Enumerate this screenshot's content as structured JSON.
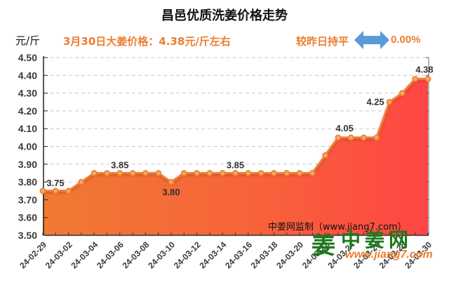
{
  "header": {
    "title": "昌邑优质洗姜价格走势",
    "unit": "元/斤",
    "headline": "3月30日大姜价格：4.38元/斤左右",
    "compare_label": "较昨日持平",
    "compare_icon": "double-arrow-left-right-icon",
    "change_pct": "0.00%"
  },
  "footer": {
    "source": "中姜网监制（www.jiang7.com）",
    "logo_text": "中姜网",
    "logo_glyph": "姜",
    "logo_url": "www.jiang7.com"
  },
  "colors": {
    "line": "#ed7d31",
    "fill_left": "#f07a32",
    "fill_right": "#ff4545",
    "accent_text": "#ed7d31",
    "arrow": "#5b9bd5",
    "logo_green": "#1a7a1a"
  },
  "chart_data": {
    "type": "area",
    "title": "昌邑优质洗姜价格走势",
    "xlabel": "",
    "ylabel": "元/斤",
    "ylim": [
      3.5,
      4.5
    ],
    "yticks": [
      "4.50",
      "4.40",
      "4.30",
      "4.20",
      "4.10",
      "4.00",
      "3.90",
      "3.80",
      "3.70",
      "3.60",
      "3.50"
    ],
    "grid": true,
    "x": [
      "24-02-29",
      "24-03-01",
      "24-03-02",
      "24-03-03",
      "24-03-04",
      "24-03-05",
      "24-03-06",
      "24-03-07",
      "24-03-08",
      "24-03-09",
      "24-03-10",
      "24-03-11",
      "24-03-12",
      "24-03-13",
      "24-03-14",
      "24-03-15",
      "24-03-16",
      "24-03-17",
      "24-03-18",
      "24-03-19",
      "24-03-20",
      "24-03-21",
      "24-03-22",
      "24-03-23",
      "24-03-24",
      "24-03-25",
      "24-03-26",
      "24-03-27",
      "24-03-28",
      "24-03-29",
      "24-03-30"
    ],
    "xtick_labels": [
      "24-02-29",
      "24-03-02",
      "24-03-04",
      "24-03-06",
      "24-03-08",
      "24-03-10",
      "24-03-12",
      "24-03-14",
      "24-03-16",
      "24-03-18",
      "24-03-20",
      "24-03-22",
      "24-03-24",
      "24-03-26",
      "24-03-28",
      "24-03-30"
    ],
    "series": [
      {
        "name": "昌邑优质洗姜价格",
        "values": [
          3.75,
          3.75,
          3.75,
          3.8,
          3.85,
          3.85,
          3.85,
          3.85,
          3.85,
          3.85,
          3.8,
          3.85,
          3.85,
          3.85,
          3.85,
          3.85,
          3.85,
          3.85,
          3.85,
          3.85,
          3.85,
          3.85,
          3.95,
          4.05,
          4.05,
          4.05,
          4.05,
          4.25,
          4.3,
          4.38,
          4.38
        ]
      }
    ],
    "annotations": [
      {
        "index": 0,
        "text": "3.75"
      },
      {
        "index": 6,
        "text": "3.85"
      },
      {
        "index": 10,
        "text": "3.80"
      },
      {
        "index": 15,
        "text": "3.85"
      },
      {
        "index": 24,
        "text": "4.05"
      },
      {
        "index": 27,
        "text": "4.25"
      },
      {
        "index": 30,
        "text": "4.38"
      }
    ]
  }
}
